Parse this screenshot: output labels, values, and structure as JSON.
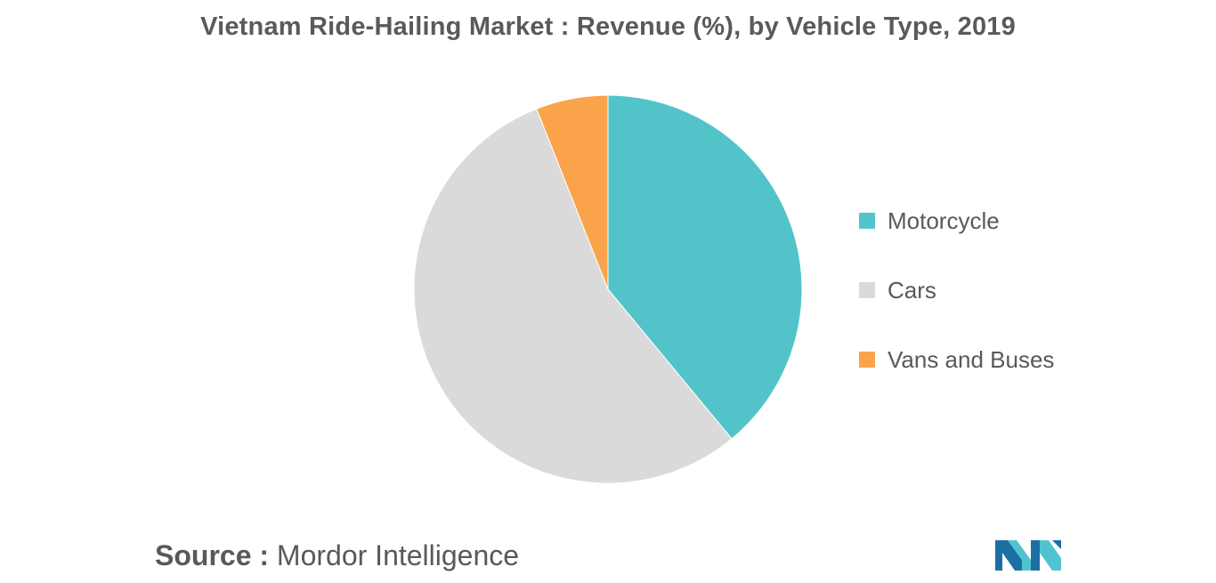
{
  "header": {
    "title": "Vietnam Ride-Hailing Market : Revenue (%), by Vehicle Type, 2019"
  },
  "chart_data": {
    "type": "pie",
    "title": "Vietnam Ride-Hailing Market : Revenue (%), by Vehicle Type, 2019",
    "categories": [
      "Motorcycle",
      "Cars",
      "Vans and Buses"
    ],
    "values": [
      39,
      55,
      6
    ],
    "colors": [
      "#52c4c9",
      "#dadada",
      "#fba34b"
    ],
    "start_angle_deg": 0,
    "direction": "clockwise",
    "legend_position": "right"
  },
  "footer": {
    "source_prefix": "Source :",
    "source_name": "Mordor Intelligence"
  },
  "logo": {
    "icon": "mordor-intelligence-logo-icon",
    "colors": [
      "#1a6fa3",
      "#4fc4d0"
    ]
  }
}
